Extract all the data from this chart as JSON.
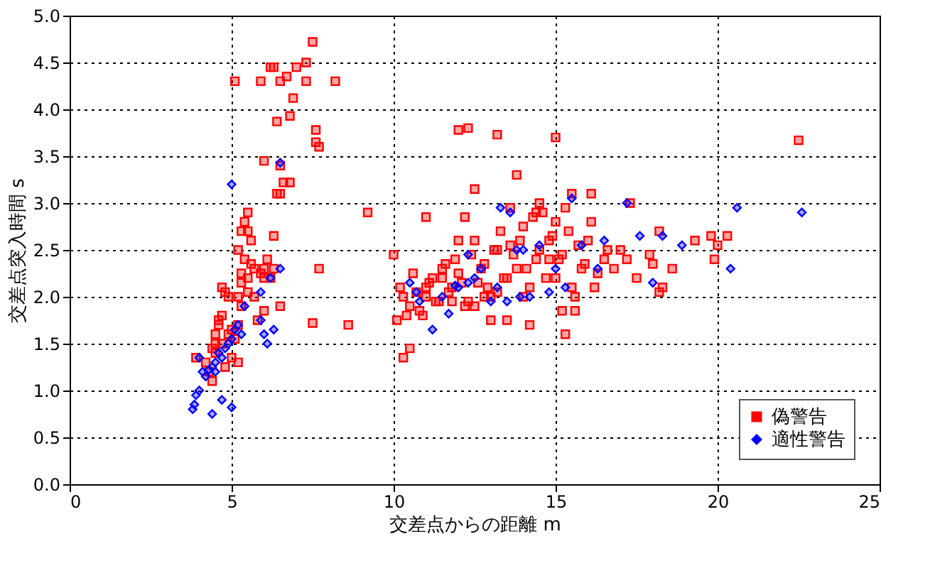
{
  "chart_data": {
    "type": "scatter",
    "xlabel": "交差点からの距離 m",
    "ylabel": "交差点突入時間 s",
    "xlim": [
      0,
      25
    ],
    "xticks": [
      0,
      5,
      10,
      15,
      20,
      25
    ],
    "ylim": [
      0,
      5
    ],
    "yticks": [
      {
        "value": 0,
        "label": "0.0"
      },
      {
        "value": 0.5,
        "label": "0.5"
      },
      {
        "value": 1,
        "label": "1.0"
      },
      {
        "value": 1.5,
        "label": "1.5"
      },
      {
        "value": 2,
        "label": "2.0"
      },
      {
        "value": 2.5,
        "label": "2.5"
      },
      {
        "value": 3,
        "label": "3.0"
      },
      {
        "value": 3.5,
        "label": "3.5"
      },
      {
        "value": 4,
        "label": "4.0"
      },
      {
        "value": 4.5,
        "label": "4.5"
      },
      {
        "value": 5,
        "label": "5.0"
      }
    ],
    "grid": true,
    "legend": "bottom right",
    "series": [
      {
        "name": "偽警告",
        "color": "#ff0000",
        "marker": "square",
        "x": [
          5.1,
          5.9,
          6.2,
          6.3,
          6.5,
          6.7,
          7.0,
          7.3,
          7.3,
          8.2,
          7.5,
          6.4,
          6.8,
          6.9,
          7.6,
          7.6,
          7.7,
          6.0,
          6.5,
          6.4,
          6.5,
          6.6,
          6.8,
          9.2,
          5.5,
          5.4,
          5.3,
          5.5,
          6.3,
          3.9,
          4.2,
          4.3,
          4.4,
          4.5,
          4.6,
          4.5,
          4.7,
          4.7,
          4.8,
          4.9,
          4.6,
          4.5,
          4.7,
          4.9,
          5.0,
          5.1,
          5.0,
          5.2,
          4.8,
          4.4,
          5.2,
          5.3,
          5.3,
          5.4,
          5.6,
          5.7,
          5.5,
          5.9,
          6.0,
          5.2,
          5.3,
          5.5,
          5.7,
          5.2,
          5.6,
          6.1,
          6.3,
          6.2,
          6.0,
          6.5,
          7.7,
          7.5,
          5.8,
          6.0,
          8.6,
          12.0,
          12.3,
          13.2,
          15.0,
          22.5,
          10.0,
          12.5,
          11.0,
          15.5,
          16.1,
          17.3,
          19.8,
          20.3,
          18.2,
          20.0,
          19.9,
          17.9,
          18.3,
          17.5,
          18.2,
          16.8,
          17.0,
          16.5,
          16.2,
          16.0,
          15.8,
          15.6,
          15.4,
          15.2,
          15.0,
          14.8,
          14.6,
          14.4,
          14.2,
          14.0,
          13.8,
          13.6,
          13.4,
          13.2,
          13.0,
          12.8,
          12.6,
          12.4,
          12.2,
          12.0,
          11.8,
          11.6,
          11.4,
          11.2,
          11.0,
          10.8,
          10.6,
          10.4,
          10.2,
          10.1,
          10.3,
          10.5,
          10.7,
          10.9,
          11.1,
          11.3,
          11.5,
          11.7,
          11.9,
          12.1,
          12.3,
          12.5,
          12.7,
          12.9,
          13.1,
          13.3,
          13.5,
          13.7,
          13.9,
          14.1,
          14.3,
          14.5,
          14.7,
          14.9,
          15.1,
          15.3,
          15.5,
          15.7,
          15.9,
          16.1,
          16.3,
          14.0,
          14.5,
          15.0,
          15.2,
          13.0,
          13.5,
          12.0,
          12.5,
          11.5,
          11.0,
          14.8,
          15.3,
          13.8,
          12.8,
          10.5,
          10.3,
          14.2,
          16.6,
          17.2,
          18.0,
          18.6,
          19.3,
          11.8,
          12.2,
          13.2,
          13.6,
          14.4,
          15.6
        ],
        "values": [
          4.3,
          4.3,
          4.45,
          4.45,
          4.3,
          4.35,
          4.45,
          4.5,
          4.3,
          4.3,
          4.72,
          3.87,
          3.93,
          4.12,
          3.78,
          3.65,
          3.6,
          3.45,
          3.4,
          3.1,
          3.1,
          3.22,
          3.22,
          2.9,
          2.9,
          2.8,
          2.7,
          2.7,
          2.65,
          1.35,
          1.3,
          1.2,
          1.45,
          1.6,
          1.7,
          1.5,
          1.8,
          2.1,
          2.05,
          2.0,
          1.75,
          1.4,
          1.5,
          1.6,
          1.65,
          1.55,
          1.35,
          1.3,
          1.25,
          1.1,
          1.7,
          1.9,
          2.15,
          2.4,
          2.35,
          2.3,
          2.2,
          2.25,
          2.2,
          2.0,
          2.25,
          2.05,
          2.0,
          2.5,
          2.6,
          2.4,
          2.3,
          2.2,
          1.85,
          1.9,
          2.3,
          1.72,
          1.75,
          2.3,
          1.7,
          3.78,
          3.8,
          3.73,
          3.7,
          3.67,
          2.45,
          3.15,
          2.85,
          3.1,
          3.1,
          3.0,
          2.65,
          2.65,
          2.7,
          2.55,
          2.4,
          2.45,
          2.1,
          2.2,
          2.05,
          2.3,
          2.5,
          2.4,
          2.1,
          2.6,
          2.3,
          2.0,
          2.7,
          2.45,
          2.2,
          2.6,
          2.9,
          2.4,
          2.1,
          2.75,
          2.3,
          2.55,
          2.2,
          2.5,
          2.0,
          2.35,
          2.15,
          2.45,
          1.9,
          2.25,
          2.1,
          2.35,
          1.95,
          2.2,
          2.0,
          1.85,
          2.25,
          1.8,
          2.1,
          1.75,
          2.0,
          1.9,
          2.05,
          1.8,
          2.15,
          1.95,
          2.3,
          2.05,
          2.4,
          2.15,
          1.95,
          2.6,
          2.3,
          2.1,
          2.5,
          2.7,
          2.2,
          2.45,
          2.6,
          2.3,
          2.85,
          2.5,
          2.2,
          2.65,
          2.4,
          2.95,
          2.1,
          2.55,
          2.35,
          2.8,
          2.25,
          2.0,
          3.0,
          2.8,
          1.85,
          1.75,
          1.75,
          2.6,
          1.9,
          2.2,
          2.1,
          2.4,
          1.6,
          3.3,
          2.0,
          1.45,
          1.35,
          1.7,
          2.5,
          2.4,
          2.35,
          2.3,
          2.6,
          1.95,
          2.85,
          2.05,
          2.95,
          2.9,
          1.85
        ]
      },
      {
        "name": "適性警告",
        "color": "#0000ff",
        "marker": "diamond",
        "x": [
          5.0,
          6.5,
          3.8,
          3.85,
          3.9,
          4.0,
          4.4,
          4.7,
          5.0,
          4.0,
          4.1,
          4.2,
          4.4,
          4.5,
          4.6,
          4.7,
          4.8,
          4.9,
          5.0,
          5.1,
          4.5,
          4.3,
          5.2,
          5.3,
          5.4,
          5.9,
          6.0,
          6.1,
          6.3,
          5.9,
          6.2,
          6.5,
          10.5,
          10.7,
          10.8,
          11.2,
          11.5,
          11.7,
          12.0,
          12.3,
          12.3,
          13.0,
          13.2,
          13.5,
          13.8,
          13.6,
          13.3,
          14.0,
          14.2,
          14.5,
          15.0,
          15.3,
          15.8,
          16.3,
          16.5,
          15.5,
          17.2,
          17.6,
          18.3,
          18.0,
          18.9,
          20.6,
          20.4,
          22.6,
          12.5,
          14.8,
          13.9,
          11.9,
          12.7
        ],
        "values": [
          3.2,
          3.43,
          0.8,
          0.85,
          0.95,
          1.0,
          0.75,
          0.9,
          0.82,
          1.35,
          1.2,
          1.15,
          1.25,
          1.3,
          1.4,
          1.35,
          1.45,
          1.5,
          1.55,
          1.65,
          1.2,
          1.22,
          1.7,
          1.6,
          1.9,
          2.05,
          1.6,
          1.5,
          1.65,
          1.75,
          2.2,
          2.3,
          2.15,
          2.05,
          1.95,
          1.65,
          2.0,
          1.82,
          2.1,
          2.15,
          2.45,
          1.95,
          2.1,
          1.95,
          2.5,
          2.9,
          2.95,
          2.5,
          2.0,
          2.55,
          2.3,
          2.1,
          2.55,
          2.3,
          2.6,
          3.05,
          3.0,
          2.65,
          2.65,
          2.15,
          2.55,
          2.95,
          2.3,
          2.9,
          2.2,
          2.05,
          2.0,
          2.12,
          2.3
        ]
      }
    ]
  }
}
